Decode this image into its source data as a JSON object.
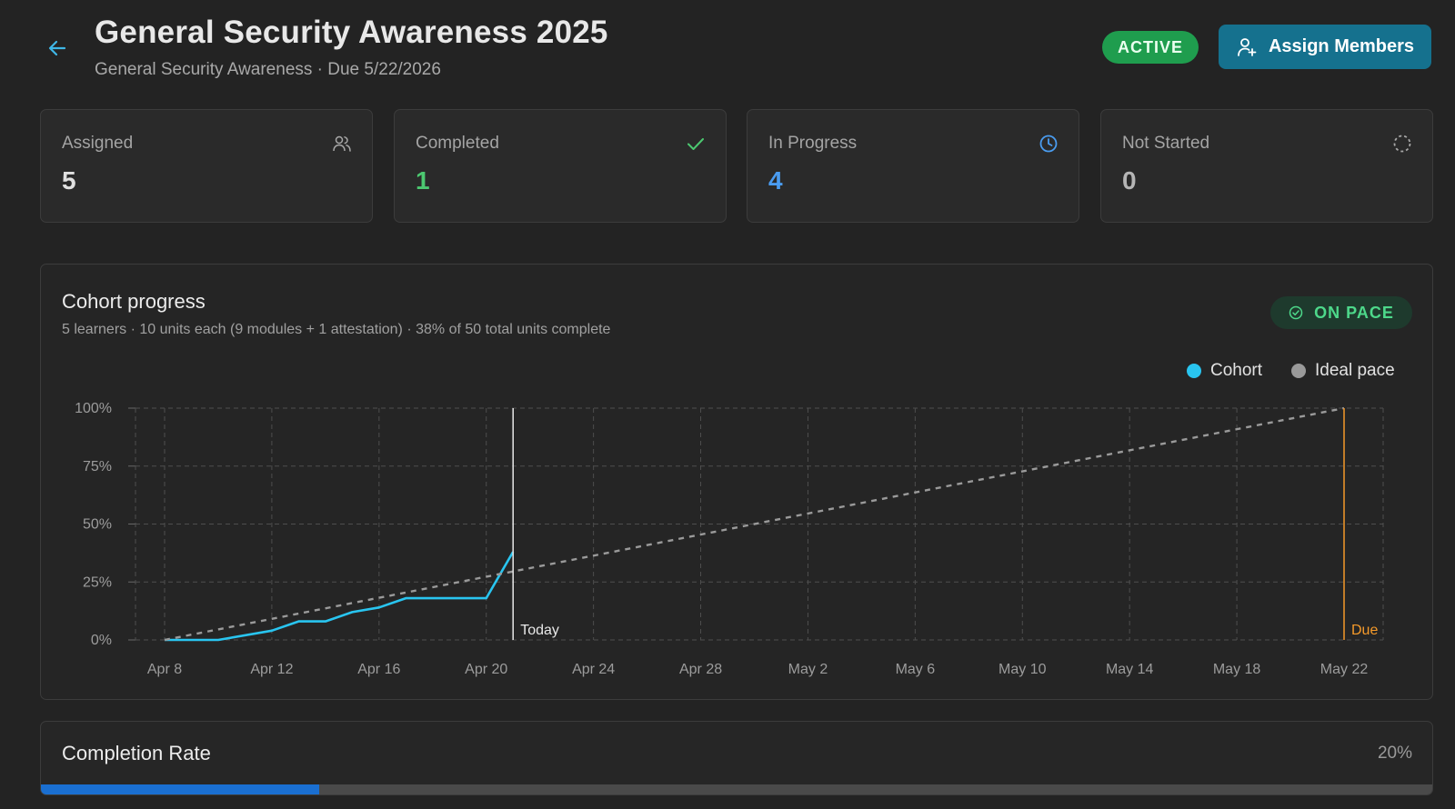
{
  "header": {
    "back_icon": "arrow-left-icon",
    "title": "General Security Awareness 2025",
    "subtitle": "General Security Awareness · Due 5/22/2026",
    "status_badge": "ACTIVE",
    "assign_button": "Assign Members",
    "assign_icon": "user-plus-icon"
  },
  "stats": [
    {
      "label": "Assigned",
      "value": "5",
      "icon": "users-icon",
      "color": "#e0e0e0"
    },
    {
      "label": "Completed",
      "value": "1",
      "icon": "check-icon",
      "color": "#4cc870"
    },
    {
      "label": "In Progress",
      "value": "4",
      "icon": "clock-icon",
      "color": "#4a9cf0"
    },
    {
      "label": "Not Started",
      "value": "0",
      "icon": "dashed-circle-icon",
      "color": "#b5b5b5"
    }
  ],
  "cohort": {
    "title": "Cohort progress",
    "subtitle": "5 learners · 10 units each (9 modules + 1 attestation) · 38% of 50 total units complete",
    "pace_badge": "ON PACE",
    "pace_icon": "check-circle-icon"
  },
  "chart_data": {
    "type": "line",
    "legend_placement": "top-right",
    "grid": true,
    "ylim": [
      0,
      100
    ],
    "yticks": [
      "0%",
      "25%",
      "50%",
      "75%",
      "100%"
    ],
    "xlim": [
      "2026-04-08",
      "2026-05-22"
    ],
    "xticks": [
      "Apr 8",
      "Apr 12",
      "Apr 16",
      "Apr 20",
      "Apr 24",
      "Apr 28",
      "May 2",
      "May 6",
      "May 10",
      "May 14",
      "May 18",
      "May 22"
    ],
    "series": [
      {
        "name": "Cohort",
        "color": "#29c5f0",
        "style": "solid",
        "points": [
          {
            "x": "2026-04-08",
            "y": 0
          },
          {
            "x": "2026-04-10",
            "y": 0
          },
          {
            "x": "2026-04-12",
            "y": 4
          },
          {
            "x": "2026-04-13",
            "y": 8
          },
          {
            "x": "2026-04-14",
            "y": 8
          },
          {
            "x": "2026-04-15",
            "y": 12
          },
          {
            "x": "2026-04-16",
            "y": 14
          },
          {
            "x": "2026-04-17",
            "y": 18
          },
          {
            "x": "2026-04-20",
            "y": 18
          },
          {
            "x": "2026-04-21",
            "y": 38
          }
        ]
      },
      {
        "name": "Ideal pace",
        "color": "#9a9a9a",
        "style": "dashed",
        "points": [
          {
            "x": "2026-04-08",
            "y": 0
          },
          {
            "x": "2026-05-22",
            "y": 100
          }
        ]
      }
    ],
    "markers": [
      {
        "label": "Today",
        "x": "2026-04-21",
        "color": "#e8e8e8"
      },
      {
        "label": "Due",
        "x": "2026-05-22",
        "color": "#f59a2a"
      }
    ]
  },
  "completion": {
    "title": "Completion Rate",
    "value_label": "20%",
    "value": 20,
    "color": "#1a6fd1"
  }
}
